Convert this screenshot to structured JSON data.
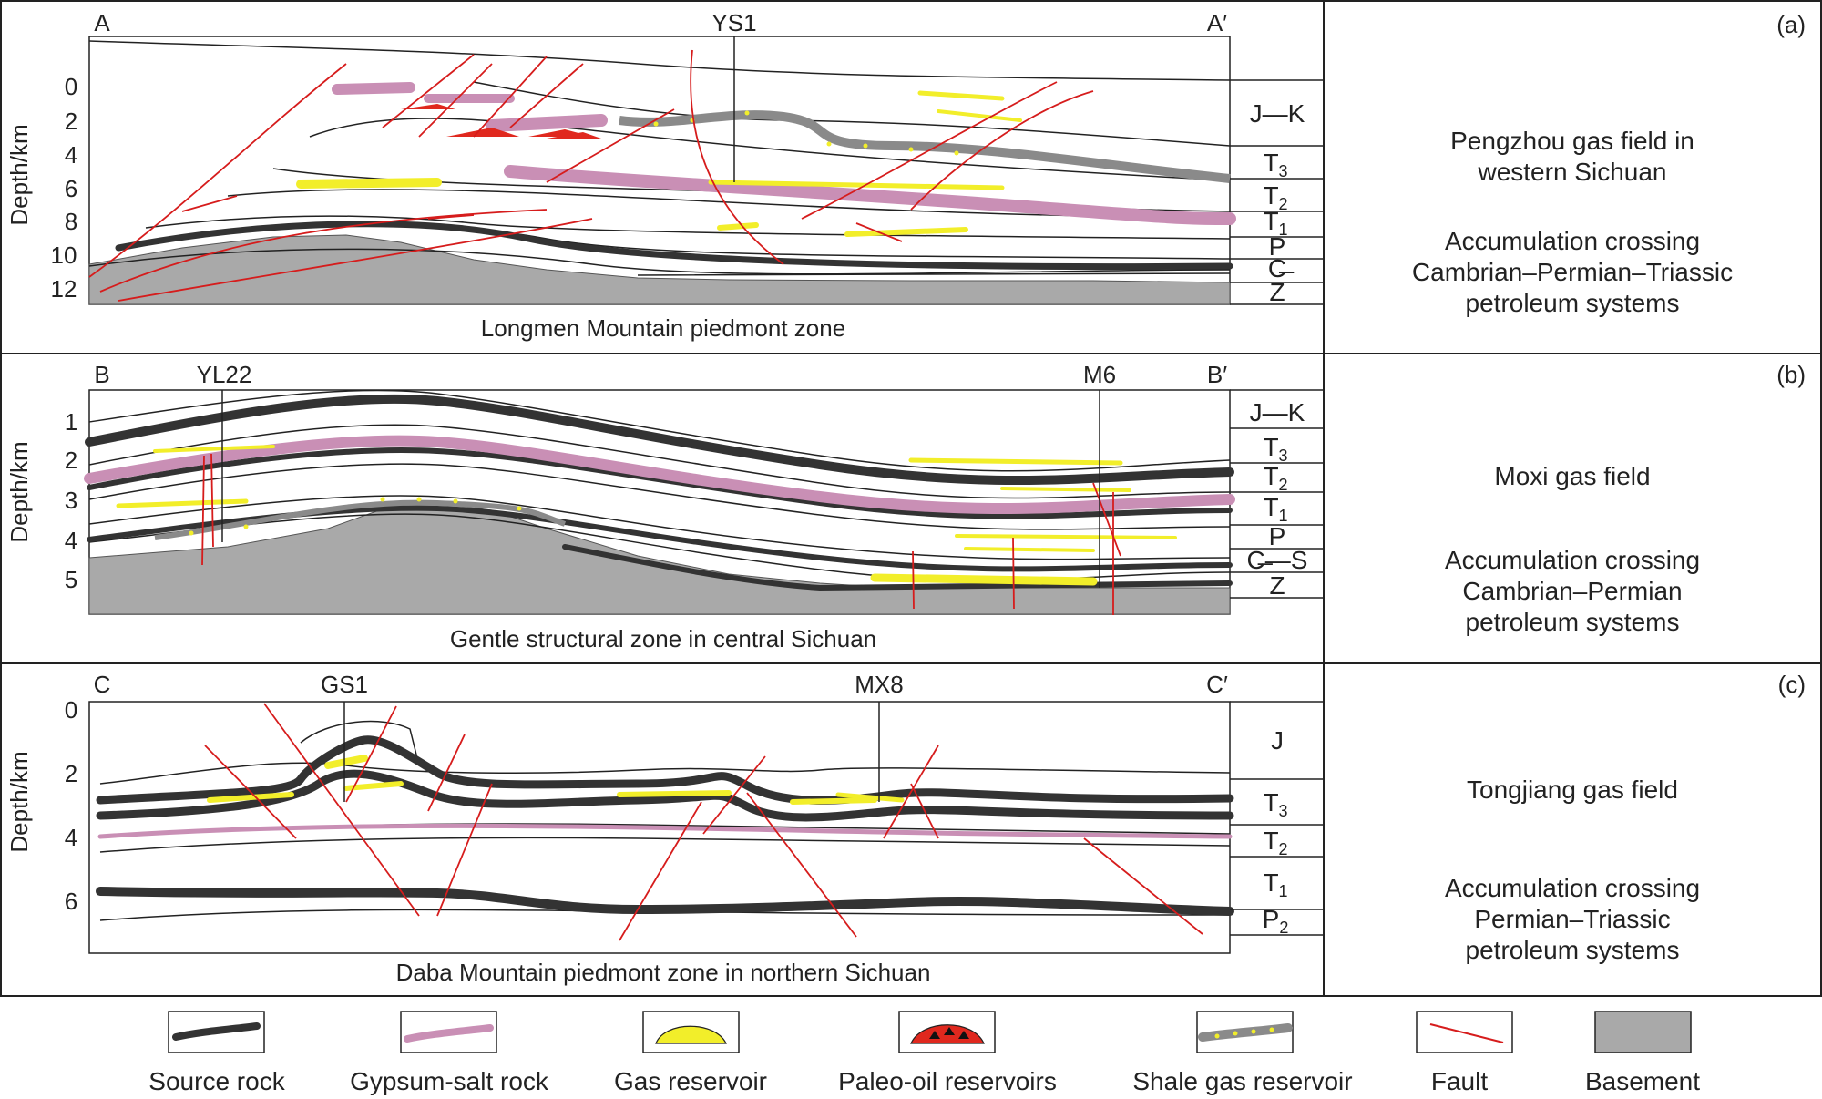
{
  "colors": {
    "source_rock": "#333333",
    "gypsum_salt": "#c98fb5",
    "gas_reservoir": "#f2ee2a",
    "paleo_oil": "#e0281e",
    "shale_gas": "#8a8a8a",
    "fault": "#d61c1c",
    "basement": "#a9a9a9"
  },
  "panels": [
    {
      "tag": "(a)",
      "section_start": "A",
      "section_end": "A′",
      "well": "YS1",
      "axis_label": "Depth/km",
      "depth_ticks": [
        "0",
        "2",
        "4",
        "6",
        "8",
        "10",
        "12"
      ],
      "strata": [
        {
          "label": "J—K"
        },
        {
          "label": "T",
          "sub": "3"
        },
        {
          "label": "T",
          "sub": "2"
        },
        {
          "label": "T",
          "sub": "1"
        },
        {
          "label": "P"
        },
        {
          "label": "C̶"
        },
        {
          "label": "Z"
        }
      ],
      "zone_caption": "Longmen Mountain piedmont zone",
      "field_name_lines": [
        "Pengzhou gas field in",
        "western Sichuan"
      ],
      "accumulation_lines": [
        "Accumulation crossing",
        "Cambrian–Permian–Triassic",
        "petroleum systems"
      ]
    },
    {
      "tag": "(b)",
      "section_start": "B",
      "section_end": "B′",
      "wells": [
        "YL22",
        "M6"
      ],
      "axis_label": "Depth/km",
      "depth_ticks": [
        "1",
        "2",
        "3",
        "4",
        "5"
      ],
      "strata": [
        {
          "label": "J—K"
        },
        {
          "label": "T",
          "sub": "3"
        },
        {
          "label": "T",
          "sub": "2"
        },
        {
          "label": "T",
          "sub": "1"
        },
        {
          "label": "P"
        },
        {
          "label": "C̶—S"
        },
        {
          "label": "Z"
        }
      ],
      "zone_caption": "Gentle structural zone in central Sichuan",
      "field_name_lines": [
        "Moxi gas field"
      ],
      "accumulation_lines": [
        "Accumulation crossing",
        "Cambrian–Permian",
        "petroleum systems"
      ]
    },
    {
      "tag": "(c)",
      "section_start": "C",
      "section_end": "C′",
      "wells": [
        "GS1",
        "MX8"
      ],
      "axis_label": "Depth/km",
      "depth_ticks": [
        "0",
        "2",
        "4",
        "6"
      ],
      "strata": [
        {
          "label": "J"
        },
        {
          "label": "T",
          "sub": "3"
        },
        {
          "label": "T",
          "sub": "2"
        },
        {
          "label": "T",
          "sub": "1"
        },
        {
          "label": "P",
          "sub": "2"
        }
      ],
      "zone_caption": "Daba Mountain piedmont zone in northern Sichuan",
      "field_name_lines": [
        "Tongjiang gas field"
      ],
      "accumulation_lines": [
        "Accumulation crossing",
        "Permian–Triassic",
        "petroleum systems"
      ]
    }
  ],
  "legend": [
    {
      "key": "source_rock",
      "label": "Source rock"
    },
    {
      "key": "gypsum_salt",
      "label": "Gypsum-salt rock"
    },
    {
      "key": "gas_reservoir",
      "label": "Gas reservoir"
    },
    {
      "key": "paleo_oil",
      "label": "Paleo-oil reservoirs"
    },
    {
      "key": "shale_gas",
      "label": "Shale gas reservoir"
    },
    {
      "key": "fault",
      "label": "Fault"
    },
    {
      "key": "basement",
      "label": "Basement"
    }
  ]
}
